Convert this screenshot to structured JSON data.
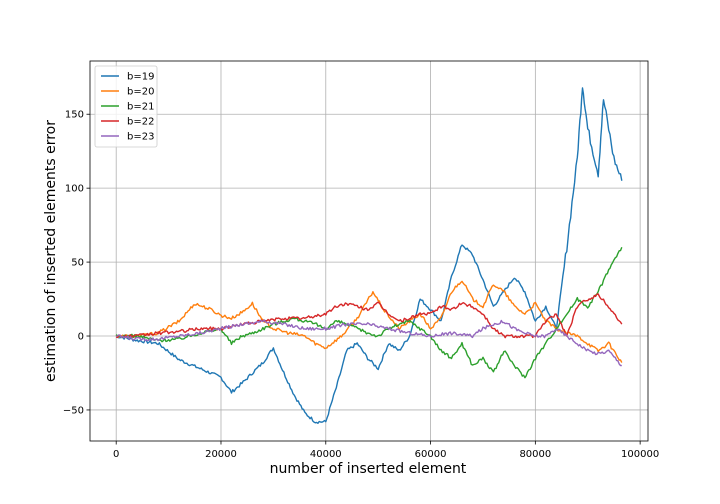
{
  "chart_data": {
    "type": "line",
    "xlabel": "number of inserted element",
    "ylabel": "estimation of inserted elements error",
    "xlim": [
      -5000,
      101500
    ],
    "ylim": [
      -71,
      186
    ],
    "xticks": [
      0,
      20000,
      40000,
      60000,
      80000,
      100000
    ],
    "xtick_labels": [
      "0",
      "20000",
      "40000",
      "60000",
      "80000",
      "100000"
    ],
    "yticks": [
      -50,
      0,
      50,
      100,
      150
    ],
    "ytick_labels": [
      "−50",
      "0",
      "50",
      "100",
      "150"
    ],
    "grid": true,
    "legend_position": "top-left",
    "series": [
      {
        "name": "b=19",
        "color": "#1f77b4",
        "x": [
          0,
          4000,
          8000,
          12000,
          16000,
          20000,
          22000,
          24000,
          26000,
          28000,
          30000,
          32000,
          34000,
          36000,
          38000,
          40000,
          42000,
          44000,
          46000,
          48000,
          50000,
          52000,
          54000,
          56000,
          58000,
          60000,
          62000,
          64000,
          66000,
          68000,
          70000,
          72000,
          74000,
          76000,
          78000,
          80000,
          82000,
          84000,
          86000,
          88000,
          89000,
          90000,
          92000,
          93000,
          95000,
          96500
        ],
        "y": [
          0,
          -3,
          -5,
          -16,
          -22,
          -28,
          -38,
          -32,
          -25,
          -18,
          -8,
          -25,
          -40,
          -52,
          -58,
          -58,
          -35,
          -10,
          -5,
          -15,
          -22,
          -5,
          -10,
          0,
          25,
          18,
          10,
          40,
          62,
          55,
          38,
          20,
          30,
          40,
          30,
          10,
          20,
          5,
          60,
          120,
          170,
          140,
          110,
          160,
          120,
          105
        ]
      },
      {
        "name": "b=20",
        "color": "#ff7f0e",
        "x": [
          0,
          4000,
          8000,
          12000,
          15000,
          18000,
          20000,
          22000,
          24000,
          26000,
          28000,
          30000,
          33000,
          36000,
          38000,
          40000,
          43000,
          46000,
          49000,
          51000,
          54000,
          56000,
          58000,
          60000,
          62000,
          64000,
          66000,
          68000,
          70000,
          72000,
          74000,
          76000,
          78000,
          80000,
          82000,
          84000,
          86000,
          88000,
          90000,
          92000,
          94000,
          96500
        ],
        "y": [
          0,
          0,
          2,
          10,
          22,
          18,
          14,
          12,
          16,
          22,
          10,
          5,
          2,
          0,
          -5,
          -8,
          0,
          12,
          30,
          18,
          5,
          10,
          15,
          5,
          12,
          30,
          38,
          25,
          20,
          35,
          30,
          20,
          15,
          22,
          10,
          5,
          2,
          0,
          -5,
          -10,
          -5,
          -18
        ]
      },
      {
        "name": "b=21",
        "color": "#2ca02c",
        "x": [
          0,
          4000,
          8000,
          12000,
          16000,
          20000,
          22000,
          24000,
          26000,
          28000,
          30000,
          32000,
          34000,
          36000,
          38000,
          40000,
          42000,
          44000,
          46000,
          48000,
          50000,
          52000,
          54000,
          56000,
          58000,
          60000,
          62000,
          64000,
          66000,
          68000,
          70000,
          72000,
          74000,
          76000,
          78000,
          80000,
          82000,
          84000,
          86000,
          88000,
          90000,
          92000,
          94000,
          96500
        ],
        "y": [
          0,
          0,
          -3,
          -2,
          2,
          5,
          -5,
          0,
          2,
          5,
          8,
          10,
          12,
          10,
          8,
          5,
          10,
          8,
          5,
          2,
          0,
          5,
          8,
          10,
          5,
          0,
          -10,
          -15,
          -5,
          -20,
          -15,
          -25,
          -10,
          -20,
          -28,
          -15,
          -5,
          5,
          15,
          25,
          20,
          30,
          45,
          60
        ]
      },
      {
        "name": "b=22",
        "color": "#d62728",
        "x": [
          0,
          4000,
          8000,
          12000,
          16000,
          20000,
          24000,
          28000,
          32000,
          36000,
          40000,
          42000,
          44000,
          46000,
          48000,
          50000,
          52000,
          54000,
          56000,
          58000,
          60000,
          62000,
          64000,
          66000,
          68000,
          70000,
          72000,
          74000,
          76000,
          78000,
          80000,
          82000,
          84000,
          86000,
          88000,
          90000,
          92000,
          94000,
          96500
        ],
        "y": [
          0,
          0,
          2,
          3,
          5,
          5,
          8,
          10,
          12,
          12,
          15,
          20,
          22,
          20,
          18,
          22,
          15,
          10,
          12,
          15,
          15,
          20,
          18,
          22,
          20,
          15,
          5,
          0,
          0,
          0,
          0,
          10,
          15,
          0,
          20,
          25,
          28,
          20,
          8
        ]
      },
      {
        "name": "b=23",
        "color": "#9467bd",
        "x": [
          0,
          4000,
          8000,
          12000,
          16000,
          20000,
          24000,
          28000,
          32000,
          36000,
          40000,
          44000,
          48000,
          52000,
          56000,
          60000,
          64000,
          68000,
          70000,
          72000,
          74000,
          76000,
          78000,
          80000,
          82000,
          84000,
          86000,
          88000,
          90000,
          92000,
          94000,
          96500
        ],
        "y": [
          0,
          -2,
          -2,
          0,
          2,
          5,
          8,
          10,
          8,
          5,
          5,
          8,
          8,
          5,
          2,
          0,
          2,
          0,
          5,
          8,
          10,
          5,
          2,
          0,
          0,
          5,
          0,
          -5,
          -10,
          -12,
          -10,
          -20
        ]
      }
    ]
  }
}
